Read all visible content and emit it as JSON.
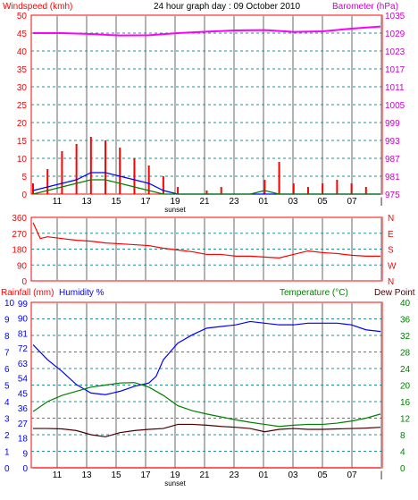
{
  "header": {
    "windspeed_label": "Windspeed (kmh)",
    "title": "24 hour graph day : 09 October 2010",
    "barometer_label": "Barometer (hPa)"
  },
  "chart_data": [
    {
      "type": "line",
      "id": "wind_baro",
      "x_ticks": [
        "11",
        "13",
        "15",
        "17",
        "19",
        "21",
        "23",
        "01",
        "03",
        "05",
        "07",
        "|"
      ],
      "x_annotation": "sunset",
      "y_left": {
        "label": "Windspeed (kmh)",
        "ylim": [
          0,
          50
        ],
        "ticks": [
          "0",
          "5",
          "10",
          "15",
          "20",
          "25",
          "30",
          "35",
          "40",
          "45",
          "50"
        ]
      },
      "y_right": {
        "label": "Barometer (hPa)",
        "ylim": [
          975,
          1035
        ],
        "ticks": [
          "975",
          "981",
          "987",
          "993",
          "999",
          "1005",
          "1011",
          "1017",
          "1023",
          "1029",
          "1035"
        ]
      },
      "series": [
        {
          "color": "#ff00ff",
          "axis": "right",
          "x": [
            0,
            2,
            4,
            6,
            8,
            10,
            12,
            14,
            16,
            18,
            20,
            22,
            24
          ],
          "values": [
            1029,
            1029,
            1028.7,
            1028.2,
            1028.3,
            1029,
            1029.5,
            1029.9,
            1030,
            1029.4,
            1029.6,
            1030.5,
            1031.2
          ]
        },
        {
          "color": "#ff0000",
          "axis": "left",
          "kind": "gust-bars",
          "x": [
            0,
            1,
            2,
            3,
            4,
            5,
            6,
            7,
            8,
            9,
            10,
            11,
            12,
            13,
            14,
            15,
            16,
            17,
            18,
            19,
            20,
            21,
            22,
            23
          ],
          "values": [
            3,
            7,
            12,
            14,
            16,
            15,
            13,
            10,
            8,
            5,
            2,
            0,
            1,
            2,
            0,
            0,
            4,
            9,
            3,
            2,
            3,
            4,
            3,
            2
          ]
        },
        {
          "color": "#0000ff",
          "axis": "left",
          "x": [
            0,
            1,
            2,
            3,
            4,
            5,
            6,
            7,
            8,
            9,
            10,
            11,
            12,
            13,
            14,
            15,
            16,
            17,
            18,
            19,
            20,
            21,
            22,
            23,
            24
          ],
          "values": [
            1,
            2,
            3,
            4,
            6,
            6,
            5,
            4,
            3,
            1,
            0,
            0,
            0,
            0,
            0,
            0,
            0,
            0,
            0,
            0,
            0,
            0,
            0,
            0,
            0
          ]
        },
        {
          "color": "#008000",
          "axis": "left",
          "x": [
            0,
            1,
            2,
            3,
            4,
            5,
            6,
            7,
            8,
            9,
            10,
            11,
            12,
            13,
            14,
            15,
            16,
            17,
            18,
            19,
            20,
            21,
            22,
            23,
            24
          ],
          "values": [
            0,
            1,
            2,
            3,
            4,
            4,
            3,
            2,
            1,
            0,
            0,
            0,
            0,
            0,
            0,
            0,
            1,
            0,
            0,
            0,
            0,
            0,
            0,
            0,
            0
          ]
        }
      ]
    },
    {
      "type": "line",
      "id": "direction",
      "y_left": {
        "ticks": [
          "0",
          "90",
          "180",
          "270",
          "360"
        ],
        "ylim": [
          0,
          360
        ]
      },
      "y_right": {
        "ticks": [
          "N",
          "W",
          "S",
          "E",
          "N"
        ]
      },
      "series": [
        {
          "color": "#ff0000",
          "x": [
            0,
            0.5,
            1,
            2,
            3,
            4,
            5,
            6,
            7,
            8,
            9,
            10,
            11,
            12,
            13,
            14,
            15,
            16,
            17,
            18,
            19,
            20,
            21,
            22,
            23,
            24
          ],
          "values": [
            330,
            240,
            250,
            240,
            230,
            225,
            215,
            210,
            205,
            200,
            185,
            175,
            165,
            150,
            150,
            140,
            140,
            135,
            130,
            150,
            170,
            160,
            155,
            145,
            140,
            140
          ]
        }
      ]
    },
    {
      "type": "line",
      "id": "rain_humidity_temp",
      "labels": {
        "rain": "Rainfall (mm)",
        "humidity": "Humidity %",
        "temperature": "Temperature (°C)",
        "dew": "Dew Point"
      },
      "x_ticks": [
        "11",
        "13",
        "15",
        "17",
        "19",
        "21",
        "23",
        "01",
        "03",
        "05",
        "07",
        "|"
      ],
      "x_annotation": "sunset",
      "y_rain": {
        "ticks": [
          "0",
          "1",
          "2",
          "3",
          "4",
          "5",
          "6",
          "7",
          "8",
          "9",
          "10"
        ],
        "ylim": [
          0,
          10
        ]
      },
      "y_humidity": {
        "ticks": [
          "0",
          "9",
          "18",
          "27",
          "36",
          "45",
          "54",
          "63",
          "72",
          "81",
          "90",
          "99"
        ],
        "ylim": [
          0,
          99
        ]
      },
      "y_temperature": {
        "ticks": [
          "0",
          "4",
          "8",
          "12",
          "16",
          "20",
          "24",
          "28",
          "32",
          "36",
          "40"
        ],
        "ylim": [
          0,
          40
        ]
      },
      "series": [
        {
          "color": "#0000ff",
          "axis": "humidity",
          "x": [
            0,
            1,
            2,
            3,
            4,
            5,
            6,
            7,
            8,
            8.5,
            9,
            10,
            11,
            12,
            13,
            14,
            15,
            16,
            17,
            18,
            19,
            20,
            21,
            22,
            23,
            24
          ],
          "values": [
            74,
            65,
            58,
            50,
            45,
            44,
            46,
            49,
            51,
            55,
            65,
            75,
            80,
            84,
            85,
            86,
            88,
            87,
            86,
            86,
            87,
            87,
            87,
            86,
            83,
            82
          ]
        },
        {
          "color": "#008000",
          "axis": "temperature",
          "x": [
            0,
            1,
            2,
            3,
            4,
            5,
            6,
            7,
            8,
            9,
            10,
            11,
            12,
            13,
            14,
            15,
            16,
            17,
            18,
            19,
            20,
            21,
            22,
            23,
            24
          ],
          "values": [
            13.6,
            16,
            17.5,
            18.5,
            19.5,
            20,
            20.5,
            20.6,
            19.5,
            17.5,
            15,
            13.8,
            13,
            12.3,
            11.6,
            11,
            10.5,
            10,
            10.3,
            10.5,
            10.5,
            10.8,
            11.3,
            12,
            13
          ]
        },
        {
          "color": "#4b0000",
          "axis": "temperature",
          "x": [
            0,
            1,
            2,
            3,
            4,
            5,
            6,
            7,
            8,
            9,
            10,
            11,
            12,
            13,
            14,
            15,
            16,
            17,
            18,
            19,
            20,
            21,
            22,
            23,
            24
          ],
          "values": [
            9.5,
            9.5,
            9.4,
            9,
            8,
            7.5,
            8.5,
            9,
            9.3,
            9.5,
            10.5,
            10.5,
            10.3,
            10,
            9.8,
            9.5,
            8.7,
            9.3,
            9.5,
            9.3,
            9.3,
            9.4,
            9.5,
            9.6,
            9.8
          ]
        },
        {
          "color": "#ff0000",
          "axis": "rain",
          "x": [
            0,
            24
          ],
          "values": [
            0,
            0
          ]
        }
      ]
    }
  ],
  "colors": {
    "wind_axis": "#ff0000",
    "baro_axis": "#cc00cc",
    "temp_axis": "#008000",
    "grid_v": "#a0a0a0",
    "grid_h": "#00a0a0",
    "frame": "#ff0000"
  }
}
